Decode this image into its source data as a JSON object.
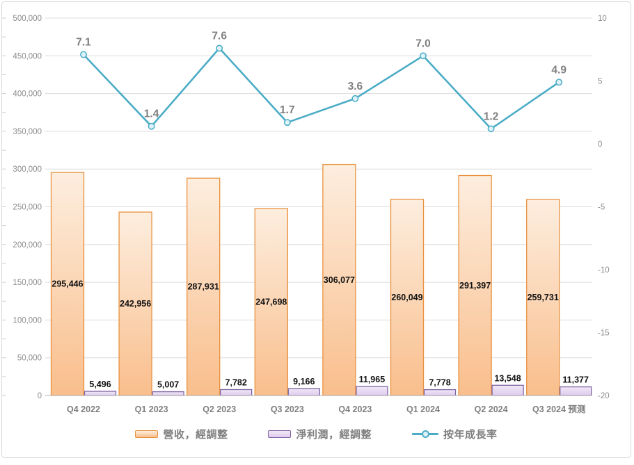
{
  "chart_data": {
    "type": "combo",
    "categories": [
      "Q4 2022",
      "Q1 2023",
      "Q2 2023",
      "Q3 2023",
      "Q4 2023",
      "Q1 2024",
      "Q2 2024",
      "Q3 2024 预测"
    ],
    "series": [
      {
        "name": "營收，經調整",
        "type": "bar",
        "axis": "left",
        "values": [
          295446,
          242956,
          287931,
          247698,
          306077,
          260049,
          291397,
          259731
        ],
        "colors": {
          "fill_top": "#FDEEDF",
          "fill_bottom": "#F9BE8C",
          "border": "#E8913F"
        }
      },
      {
        "name": "淨利潤，經調整",
        "type": "bar",
        "axis": "left",
        "values": [
          5496,
          5007,
          7782,
          9166,
          11965,
          7778,
          13548,
          11377
        ],
        "colors": {
          "fill_top": "#F0E8F7",
          "fill_bottom": "#DECBEE",
          "border": "#8064A2"
        }
      },
      {
        "name": "按年成長率",
        "type": "line",
        "axis": "right",
        "values": [
          7.1,
          1.4,
          7.6,
          1.7,
          3.6,
          7.0,
          1.2,
          4.9
        ],
        "colors": {
          "line": "#4BACC6",
          "marker_fill": "#DDF2F9"
        }
      }
    ],
    "left_axis": {
      "min": 0,
      "max": 500000,
      "step": 50000,
      "tick_labels": [
        "500,000",
        "450,000",
        "400,000",
        "350,000",
        "300,000",
        "250,000",
        "200,000",
        "150,000",
        "100,000",
        "50,000",
        "0"
      ]
    },
    "right_axis": {
      "min": -20,
      "max": 10,
      "step": 5,
      "tick_labels": [
        "10",
        "5",
        "0",
        "-5",
        "-10",
        "-15",
        "-20"
      ]
    },
    "grid": true,
    "legend_position": "bottom",
    "styles": {
      "gridline": "#DCDCDC",
      "axis_line": "#BFBFBF",
      "minor_tick": "#CFCFCF",
      "axis_text": "#8C8C8C",
      "category_text": "#7F7F7F",
      "bar_label": "#111111",
      "line_label": "#7F7F7F",
      "frame_border": "#D9D9D9"
    }
  }
}
